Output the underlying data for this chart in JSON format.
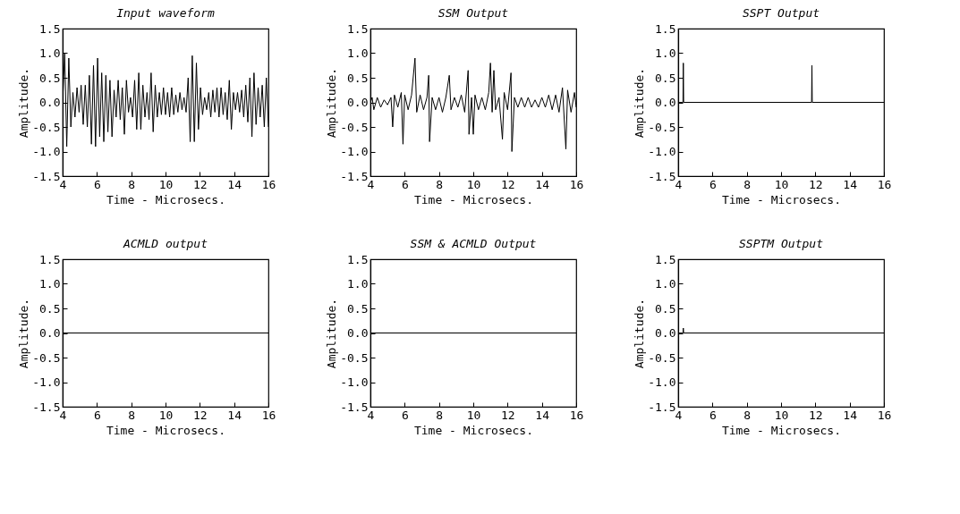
{
  "chart_data": [
    {
      "type": "line",
      "title": "Input waveform",
      "xlabel": "Time - Microsecs.",
      "ylabel": "Amplitude.",
      "xlim": [
        4,
        16
      ],
      "ylim": [
        -1.5,
        1.5
      ],
      "xticks": [
        4,
        6,
        8,
        10,
        12,
        14,
        16
      ],
      "yticks": [
        {
          "value": 1.5,
          "label": "1.5"
        },
        {
          "value": 1,
          "label": "1.0"
        },
        0.5,
        {
          "value": 0,
          "label": "0.0"
        },
        -0.5,
        {
          "value": -1,
          "label": "-1.0"
        },
        -1.5
      ],
      "series": [
        {
          "color": "#000000",
          "x": [
            4.0,
            4.12,
            4.24,
            4.36,
            4.48,
            4.6,
            4.72,
            4.84,
            4.96,
            5.08,
            5.2,
            5.32,
            5.44,
            5.56,
            5.68,
            5.8,
            5.92,
            6.04,
            6.16,
            6.28,
            6.4,
            6.52,
            6.64,
            6.76,
            6.88,
            7.0,
            7.12,
            7.24,
            7.36,
            7.48,
            7.6,
            7.72,
            7.84,
            7.96,
            8.08,
            8.2,
            8.32,
            8.44,
            8.56,
            8.68,
            8.8,
            8.92,
            9.04,
            9.16,
            9.28,
            9.4,
            9.52,
            9.64,
            9.76,
            9.88,
            10.0,
            10.12,
            10.24,
            10.36,
            10.48,
            10.6,
            10.72,
            10.84,
            10.96,
            11.08,
            11.2,
            11.32,
            11.44,
            11.56,
            11.68,
            11.8,
            11.92,
            12.04,
            12.16,
            12.28,
            12.4,
            12.52,
            12.64,
            12.76,
            12.88,
            13.0,
            13.12,
            13.24,
            13.36,
            13.48,
            13.6,
            13.72,
            13.84,
            13.96,
            14.08,
            14.2,
            14.32,
            14.44,
            14.56,
            14.68,
            14.8,
            14.92,
            15.04,
            15.16,
            15.28,
            15.4,
            15.52,
            15.64,
            15.76,
            15.88,
            16.0
          ],
          "values": [
            0,
            1.0,
            -0.9,
            0.9,
            -0.5,
            0.2,
            -0.3,
            0.3,
            -0.2,
            0.35,
            -0.45,
            0.35,
            -0.5,
            0.55,
            -0.85,
            0.75,
            -0.9,
            0.9,
            -0.7,
            0.6,
            -0.8,
            0.55,
            -0.6,
            0.45,
            -0.7,
            0.25,
            -0.3,
            0.45,
            -0.35,
            0.3,
            -0.65,
            0.45,
            -0.2,
            0.1,
            -0.3,
            0.45,
            -0.55,
            0.6,
            -0.55,
            0.35,
            -0.3,
            0.2,
            -0.35,
            0.6,
            -0.6,
            0.35,
            -0.3,
            0.2,
            -0.25,
            0.3,
            -0.25,
            0.2,
            -0.3,
            0.3,
            -0.25,
            0.15,
            -0.2,
            0.2,
            -0.15,
            0.1,
            -0.2,
            0.5,
            -0.8,
            0.95,
            -0.8,
            0.8,
            -0.55,
            0.3,
            -0.25,
            0.1,
            -0.15,
            0.2,
            -0.3,
            0.25,
            -0.2,
            0.3,
            -0.3,
            0.3,
            -0.25,
            0.2,
            -0.35,
            0.45,
            -0.55,
            0.2,
            -0.15,
            0.2,
            -0.2,
            0.25,
            -0.3,
            0.35,
            -0.4,
            0.5,
            -0.7,
            0.6,
            -0.45,
            0.3,
            -0.3,
            0.35,
            -0.5,
            0.5,
            -0.5
          ]
        }
      ]
    },
    {
      "type": "line",
      "title": "SSM Output",
      "xlabel": "Time - Microsecs.",
      "ylabel": "Amplitude.",
      "xlim": [
        4,
        16
      ],
      "ylim": [
        -1.5,
        1.5
      ],
      "xticks": [
        4,
        6,
        8,
        10,
        12,
        14,
        16
      ],
      "yticks": [
        {
          "value": 1.5,
          "label": "1.5"
        },
        {
          "value": 1,
          "label": "1.0"
        },
        0.5,
        {
          "value": 0,
          "label": "0.0"
        },
        -0.5,
        {
          "value": -1,
          "label": "-1.0"
        },
        -1.5
      ],
      "series": [
        {
          "color": "#000000",
          "x": [
            4.0,
            4.1,
            4.2,
            4.4,
            4.6,
            4.8,
            5.0,
            5.2,
            5.3,
            5.4,
            5.6,
            5.8,
            5.9,
            6.0,
            6.2,
            6.4,
            6.6,
            6.7,
            6.9,
            7.1,
            7.3,
            7.4,
            7.45,
            7.6,
            7.8,
            8.0,
            8.2,
            8.4,
            8.6,
            8.7,
            8.9,
            9.1,
            9.3,
            9.5,
            9.7,
            9.75,
            9.9,
            10.0,
            10.1,
            10.3,
            10.5,
            10.7,
            10.9,
            11.0,
            11.1,
            11.2,
            11.3,
            11.5,
            11.7,
            11.8,
            12.0,
            12.2,
            12.25,
            12.4,
            12.6,
            12.8,
            13.0,
            13.2,
            13.4,
            13.6,
            13.8,
            14.0,
            14.2,
            14.4,
            14.6,
            14.8,
            15.0,
            15.2,
            15.4,
            15.5,
            15.7,
            15.9,
            16.0
          ],
          "values": [
            0,
            0.1,
            -0.15,
            0.1,
            -0.1,
            0.05,
            -0.05,
            0.1,
            -0.5,
            0.15,
            -0.1,
            0.2,
            -0.85,
            0.15,
            -0.15,
            0.15,
            0.9,
            -0.2,
            0.15,
            -0.15,
            0.1,
            0.55,
            -0.8,
            0.1,
            -0.15,
            0.1,
            -0.2,
            0.1,
            0.55,
            -0.15,
            0.1,
            -0.1,
            0.15,
            -0.2,
            0.65,
            -0.65,
            0.1,
            -0.65,
            0.15,
            -0.15,
            0.1,
            -0.15,
            0.2,
            0.8,
            -0.2,
            0.65,
            -0.15,
            0.1,
            -0.75,
            0.2,
            -0.15,
            0.6,
            -1.0,
            0.1,
            -0.1,
            0.1,
            -0.1,
            0.1,
            -0.1,
            0.05,
            -0.1,
            0.1,
            -0.1,
            0.15,
            -0.15,
            0.15,
            -0.2,
            0.3,
            -0.95,
            0.25,
            -0.2,
            0.2,
            -0.1
          ]
        }
      ]
    },
    {
      "type": "line",
      "title": "SSPT Output",
      "xlabel": "Time - Microsecs.",
      "ylabel": "Amplitude.",
      "xlim": [
        4,
        16
      ],
      "ylim": [
        -1.5,
        1.5
      ],
      "xticks": [
        4,
        6,
        8,
        10,
        12,
        14,
        16
      ],
      "yticks": [
        {
          "value": 1.5,
          "label": "1.5"
        },
        {
          "value": 1,
          "label": "1.0"
        },
        0.5,
        {
          "value": 0,
          "label": "0.0"
        },
        -0.5,
        {
          "value": -1,
          "label": "-1.0"
        },
        -1.5
      ],
      "series": [
        {
          "color": "#000000",
          "x": [
            4.0,
            4.28,
            4.3,
            4.32,
            11.78,
            11.8,
            11.82,
            16.0
          ],
          "values": [
            0,
            0,
            0.8,
            0,
            0,
            0.75,
            0,
            0
          ]
        }
      ]
    },
    {
      "type": "line",
      "title": "ACMLD output",
      "xlabel": "Time - Microsecs.",
      "ylabel": "Amplitude.",
      "xlim": [
        4,
        16
      ],
      "ylim": [
        -1.5,
        1.5
      ],
      "xticks": [
        4,
        6,
        8,
        10,
        12,
        14,
        16
      ],
      "yticks": [
        {
          "value": 1.5,
          "label": "1.5"
        },
        {
          "value": 1,
          "label": "1.0"
        },
        0.5,
        {
          "value": 0,
          "label": "0.0"
        },
        -0.5,
        {
          "value": -1,
          "label": "-1.0"
        },
        -1.5
      ],
      "series": [
        {
          "color": "#000000",
          "x": [
            4.0,
            16.0
          ],
          "values": [
            0,
            0
          ]
        }
      ]
    },
    {
      "type": "line",
      "title": "SSM & ACMLD Output",
      "xlabel": "Time - Microsecs.",
      "ylabel": "Amplitude.",
      "xlim": [
        4,
        16
      ],
      "ylim": [
        -1.5,
        1.5
      ],
      "xticks": [
        4,
        6,
        8,
        10,
        12,
        14,
        16
      ],
      "yticks": [
        {
          "value": 1.5,
          "label": "1.5"
        },
        {
          "value": 1,
          "label": "1.0"
        },
        0.5,
        {
          "value": 0,
          "label": "0.0"
        },
        -0.5,
        {
          "value": -1,
          "label": "-1.0"
        },
        -1.5
      ],
      "series": [
        {
          "color": "#000000",
          "x": [
            4.0,
            16.0
          ],
          "values": [
            0,
            0
          ]
        }
      ]
    },
    {
      "type": "line",
      "title": "SSPTM Output",
      "xlabel": "Time - Microsecs.",
      "ylabel": "Amplitude.",
      "xlim": [
        4,
        16
      ],
      "ylim": [
        -1.5,
        1.5
      ],
      "xticks": [
        4,
        6,
        8,
        10,
        12,
        14,
        16
      ],
      "yticks": [
        {
          "value": 1.5,
          "label": "1.5"
        },
        {
          "value": 1,
          "label": "1.0"
        },
        0.5,
        {
          "value": 0,
          "label": "0.0"
        },
        -0.5,
        {
          "value": -1,
          "label": "-1.0"
        },
        -1.5
      ],
      "series": [
        {
          "color": "#000000",
          "x": [
            4.0,
            4.28,
            4.3,
            4.32,
            16.0
          ],
          "values": [
            0,
            0,
            0.1,
            0,
            0
          ]
        }
      ]
    }
  ]
}
